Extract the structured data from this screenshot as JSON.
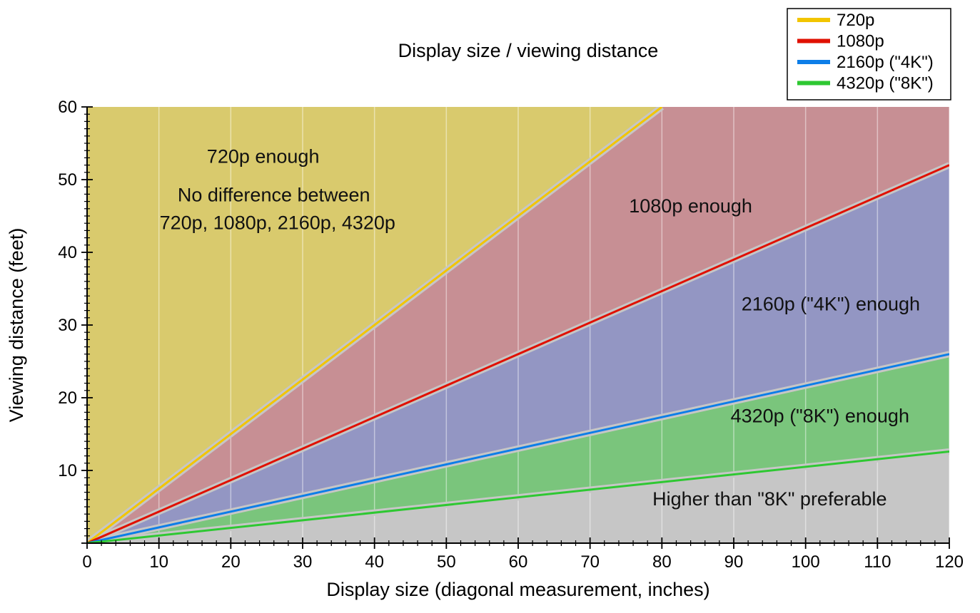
{
  "title": "Display size / viewing distance",
  "axes": {
    "x": {
      "label": "Display size (diagonal measurement, inches)",
      "min": 0,
      "max": 120,
      "major_step": 10,
      "minor_step": 2,
      "ticks": [
        "0",
        "10",
        "20",
        "30",
        "40",
        "50",
        "60",
        "70",
        "80",
        "90",
        "100",
        "110",
        "120"
      ]
    },
    "y": {
      "label": "Viewing distance (feet)",
      "min": 0,
      "max": 60,
      "major_step": 10,
      "minor_step": 1,
      "ticks": [
        "10",
        "20",
        "30",
        "40",
        "50",
        "60"
      ]
    }
  },
  "legend": {
    "items": [
      {
        "label": "720p",
        "color": "#f2c500"
      },
      {
        "label": "1080p",
        "color": "#e01000"
      },
      {
        "label": "2160p (\"4K\")",
        "color": "#0d7ee8"
      },
      {
        "label": "4320p (\"8K\")",
        "color": "#2ec832"
      }
    ]
  },
  "chart_data": {
    "type": "area",
    "title": "Display size / viewing distance",
    "xlabel": "Display size (diagonal measurement, inches)",
    "ylabel": "Viewing distance (feet)",
    "x_range": [
      0,
      120
    ],
    "y_range": [
      0,
      60
    ],
    "x_unit": "inches (diagonal)",
    "y_unit": "feet",
    "plot_background": "#c6c6c6",
    "halo_color": "#c6c6c6",
    "gridlines": {
      "vertical_every": 10,
      "color": "rgba(255,255,255,0.45)"
    },
    "series": [
      {
        "name": "720p",
        "color": "#f2c500",
        "points": [
          [
            0,
            0
          ],
          [
            80,
            60
          ]
        ],
        "slope_ft_per_inch": 0.75
      },
      {
        "name": "1080p",
        "color": "#e01000",
        "points": [
          [
            0,
            0
          ],
          [
            120,
            52
          ]
        ],
        "slope_ft_per_inch": 0.433
      },
      {
        "name": "2160p (\"4K\")",
        "color": "#0d7ee8",
        "points": [
          [
            0,
            0
          ],
          [
            120,
            26
          ]
        ],
        "slope_ft_per_inch": 0.217
      },
      {
        "name": "4320p (\"8K\")",
        "color": "#2ec832",
        "points": [
          [
            0,
            0
          ],
          [
            120,
            12.6
          ]
        ],
        "slope_ft_per_inch": 0.105
      }
    ],
    "regions": [
      {
        "name": "720p-enough",
        "color": "#d9ca6d",
        "polygon": [
          [
            0,
            0
          ],
          [
            80,
            60
          ],
          [
            0,
            60
          ]
        ]
      },
      {
        "name": "1080p-enough",
        "color": "#c78f94",
        "polygon": [
          [
            0,
            0
          ],
          [
            120,
            52
          ],
          [
            120,
            60
          ],
          [
            80,
            60
          ]
        ]
      },
      {
        "name": "2160p-4k-enough",
        "color": "#9396c3",
        "polygon": [
          [
            0,
            0
          ],
          [
            120,
            26
          ],
          [
            120,
            52
          ]
        ]
      },
      {
        "name": "4320p-8k-enough",
        "color": "#7ac57c",
        "polygon": [
          [
            0,
            0
          ],
          [
            120,
            12.6
          ],
          [
            120,
            26
          ]
        ]
      },
      {
        "name": "higher-than-8k",
        "color": "#c6c6c6",
        "polygon": [
          [
            0,
            0
          ],
          [
            120,
            0
          ],
          [
            120,
            12.6
          ]
        ]
      }
    ],
    "annotations": [
      {
        "text": "720p enough",
        "x": 24.5,
        "y": 52.3
      },
      {
        "text": "No difference between",
        "x": 26.0,
        "y": 47.0
      },
      {
        "text": "720p, 1080p, 2160p, 4320p",
        "x": 26.5,
        "y": 43.2
      },
      {
        "text": "1080p enough",
        "x": 84.0,
        "y": 45.5
      },
      {
        "text": "2160p (\"4K\") enough",
        "x": 103.5,
        "y": 32.0
      },
      {
        "text": "4320p (\"8K\") enough",
        "x": 102.0,
        "y": 16.6
      },
      {
        "text": "Higher than \"8K\" preferable",
        "x": 95.0,
        "y": 5.2
      }
    ]
  }
}
